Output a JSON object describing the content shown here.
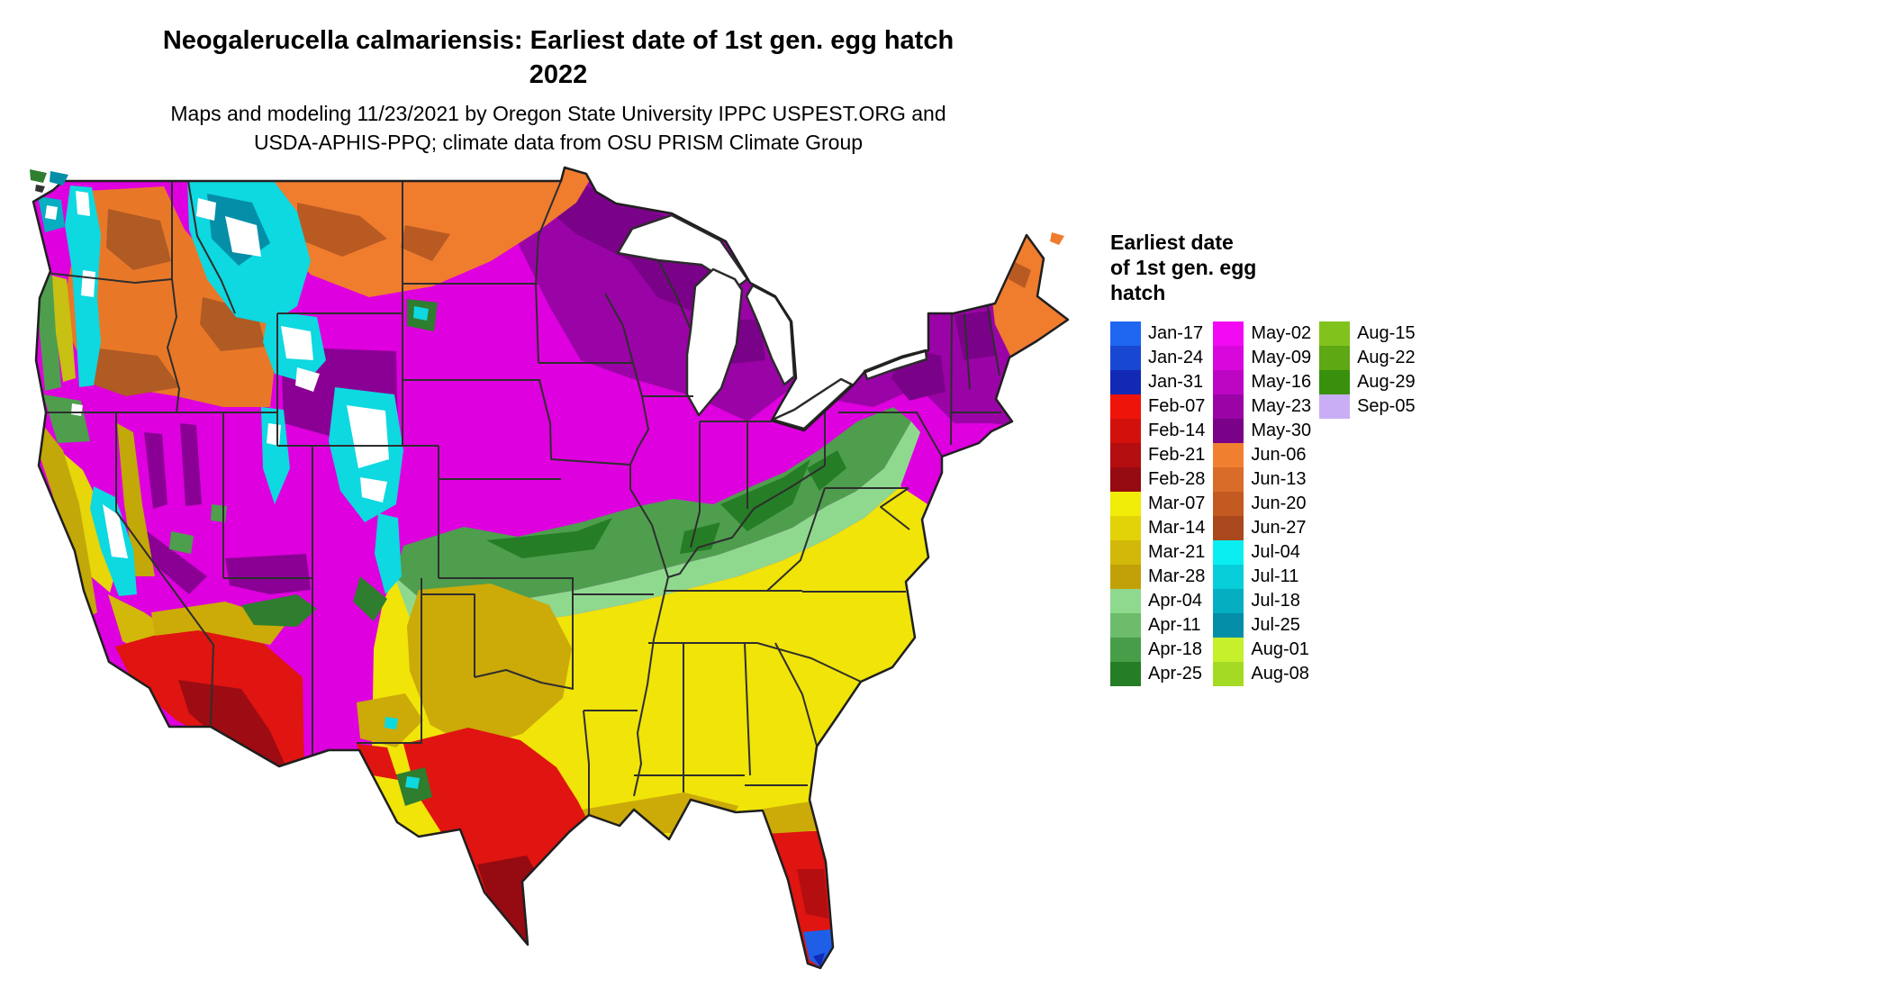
{
  "title": {
    "line1": "Neogalerucella calmariensis: Earliest date of 1st gen. egg hatch",
    "line2": "2022"
  },
  "subtitle": {
    "line1": "Maps and modeling 11/23/2021 by Oregon State University IPPC USPEST.ORG and",
    "line2": "USDA-APHIS-PPQ; climate data from OSU PRISM Climate Group"
  },
  "legend": {
    "title": "Earliest date\nof 1st gen. egg\nhatch",
    "columns": [
      [
        {
          "label": "Jan-17",
          "color": "#1F66F0"
        },
        {
          "label": "Jan-24",
          "color": "#1847D2"
        },
        {
          "label": "Jan-31",
          "color": "#1129B4"
        },
        {
          "label": "Feb-07",
          "color": "#EE1409"
        },
        {
          "label": "Feb-14",
          "color": "#D2110D"
        },
        {
          "label": "Feb-21",
          "color": "#B40E10"
        },
        {
          "label": "Feb-28",
          "color": "#960A12"
        },
        {
          "label": "Mar-07",
          "color": "#F2EC09"
        },
        {
          "label": "Mar-14",
          "color": "#E2D208"
        },
        {
          "label": "Mar-21",
          "color": "#D2B808"
        },
        {
          "label": "Mar-28",
          "color": "#C2A007"
        },
        {
          "label": "Apr-04",
          "color": "#8FD98F"
        },
        {
          "label": "Apr-11",
          "color": "#6CBC6C"
        },
        {
          "label": "Apr-18",
          "color": "#489D48"
        },
        {
          "label": "Apr-25",
          "color": "#257E25"
        }
      ],
      [
        {
          "label": "May-02",
          "color": "#F20AF2"
        },
        {
          "label": "May-09",
          "color": "#D808DC"
        },
        {
          "label": "May-16",
          "color": "#BC06C4"
        },
        {
          "label": "May-23",
          "color": "#9A04A6"
        },
        {
          "label": "May-30",
          "color": "#7A0288"
        },
        {
          "label": "Jun-06",
          "color": "#F08030"
        },
        {
          "label": "Jun-13",
          "color": "#D96C28"
        },
        {
          "label": "Jun-20",
          "color": "#C25A22"
        },
        {
          "label": "Jun-27",
          "color": "#A8481C"
        },
        {
          "label": "Jul-04",
          "color": "#0AEEF2"
        },
        {
          "label": "Jul-11",
          "color": "#08CEDA"
        },
        {
          "label": "Jul-18",
          "color": "#06AEC2"
        },
        {
          "label": "Jul-25",
          "color": "#048EA8"
        },
        {
          "label": "Aug-01",
          "color": "#C6F02C"
        },
        {
          "label": "Aug-08",
          "color": "#A4DA24"
        }
      ],
      [
        {
          "label": "Aug-15",
          "color": "#82C21C"
        },
        {
          "label": "Aug-22",
          "color": "#5EA814"
        },
        {
          "label": "Aug-29",
          "color": "#38900C"
        },
        {
          "label": "Sep-05",
          "color": "#C9AEF6"
        }
      ]
    ]
  }
}
